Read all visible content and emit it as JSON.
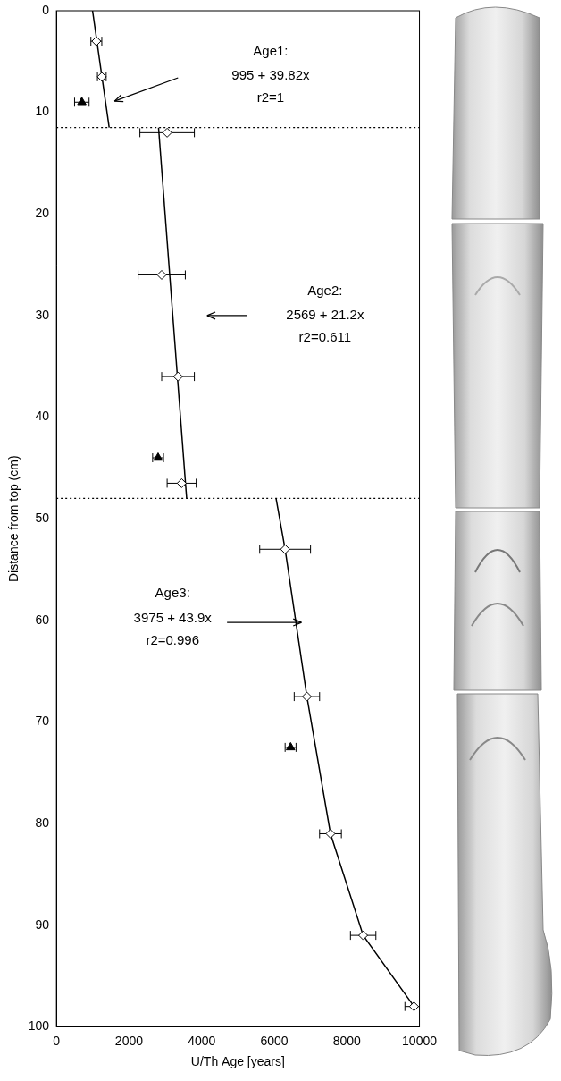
{
  "chart_data": {
    "type": "scatter",
    "x_label": "U/Th Age [years]",
    "y_label": "Distance from top (cm)",
    "xlim": [
      0,
      10000
    ],
    "xticks": [
      0,
      2000,
      4000,
      6000,
      8000,
      10000
    ],
    "ylim": [
      100,
      0
    ],
    "yticks": [
      0,
      10,
      20,
      30,
      40,
      50,
      60,
      70,
      80,
      90,
      100
    ],
    "grid": false,
    "series": [
      {
        "type": "line",
        "color": "#000000",
        "line_style": "solid",
        "x": [
          995,
          1453
        ],
        "y": [
          0,
          11.5
        ]
      },
      {
        "type": "line",
        "color": "#000000",
        "line_style": "solid",
        "x": [
          2813,
          3587
        ],
        "y": [
          11.5,
          48
        ]
      },
      {
        "type": "line",
        "color": "#000000",
        "line_style": "solid",
        "x": [
          6050,
          6300,
          6900,
          7550,
          8450,
          9850
        ],
        "y": [
          48,
          53,
          67.5,
          81,
          91,
          98
        ]
      },
      {
        "type": "scatter",
        "color": "#000000",
        "marker": "diamond-open",
        "x": [
          1100,
          1250,
          3050,
          2900,
          3350,
          3450,
          6300,
          6900,
          7550,
          8450,
          9850
        ],
        "y": [
          3,
          6.5,
          12,
          26,
          36,
          46.5,
          53,
          67.5,
          81,
          91,
          98
        ],
        "xerr": [
          150,
          120,
          750,
          650,
          450,
          400,
          700,
          350,
          300,
          350,
          250
        ]
      },
      {
        "type": "scatter",
        "color": "#000000",
        "marker": "triangle",
        "x": [
          700,
          2800,
          6450
        ],
        "y": [
          9,
          44,
          72.5
        ],
        "xerr": [
          200,
          150,
          150
        ]
      }
    ],
    "boundaries": [
      11.5,
      48
    ],
    "annotations": [
      {
        "text": [
          "Age1:",
          "995 + 39.82x",
          "r2=1"
        ]
      },
      {
        "text": [
          "Age2:",
          "2569 + 21.2x",
          "r2=0.611"
        ]
      },
      {
        "text": [
          "Age3:",
          "3975 + 43.9x",
          "r2=0.996"
        ]
      }
    ],
    "legend": false
  }
}
